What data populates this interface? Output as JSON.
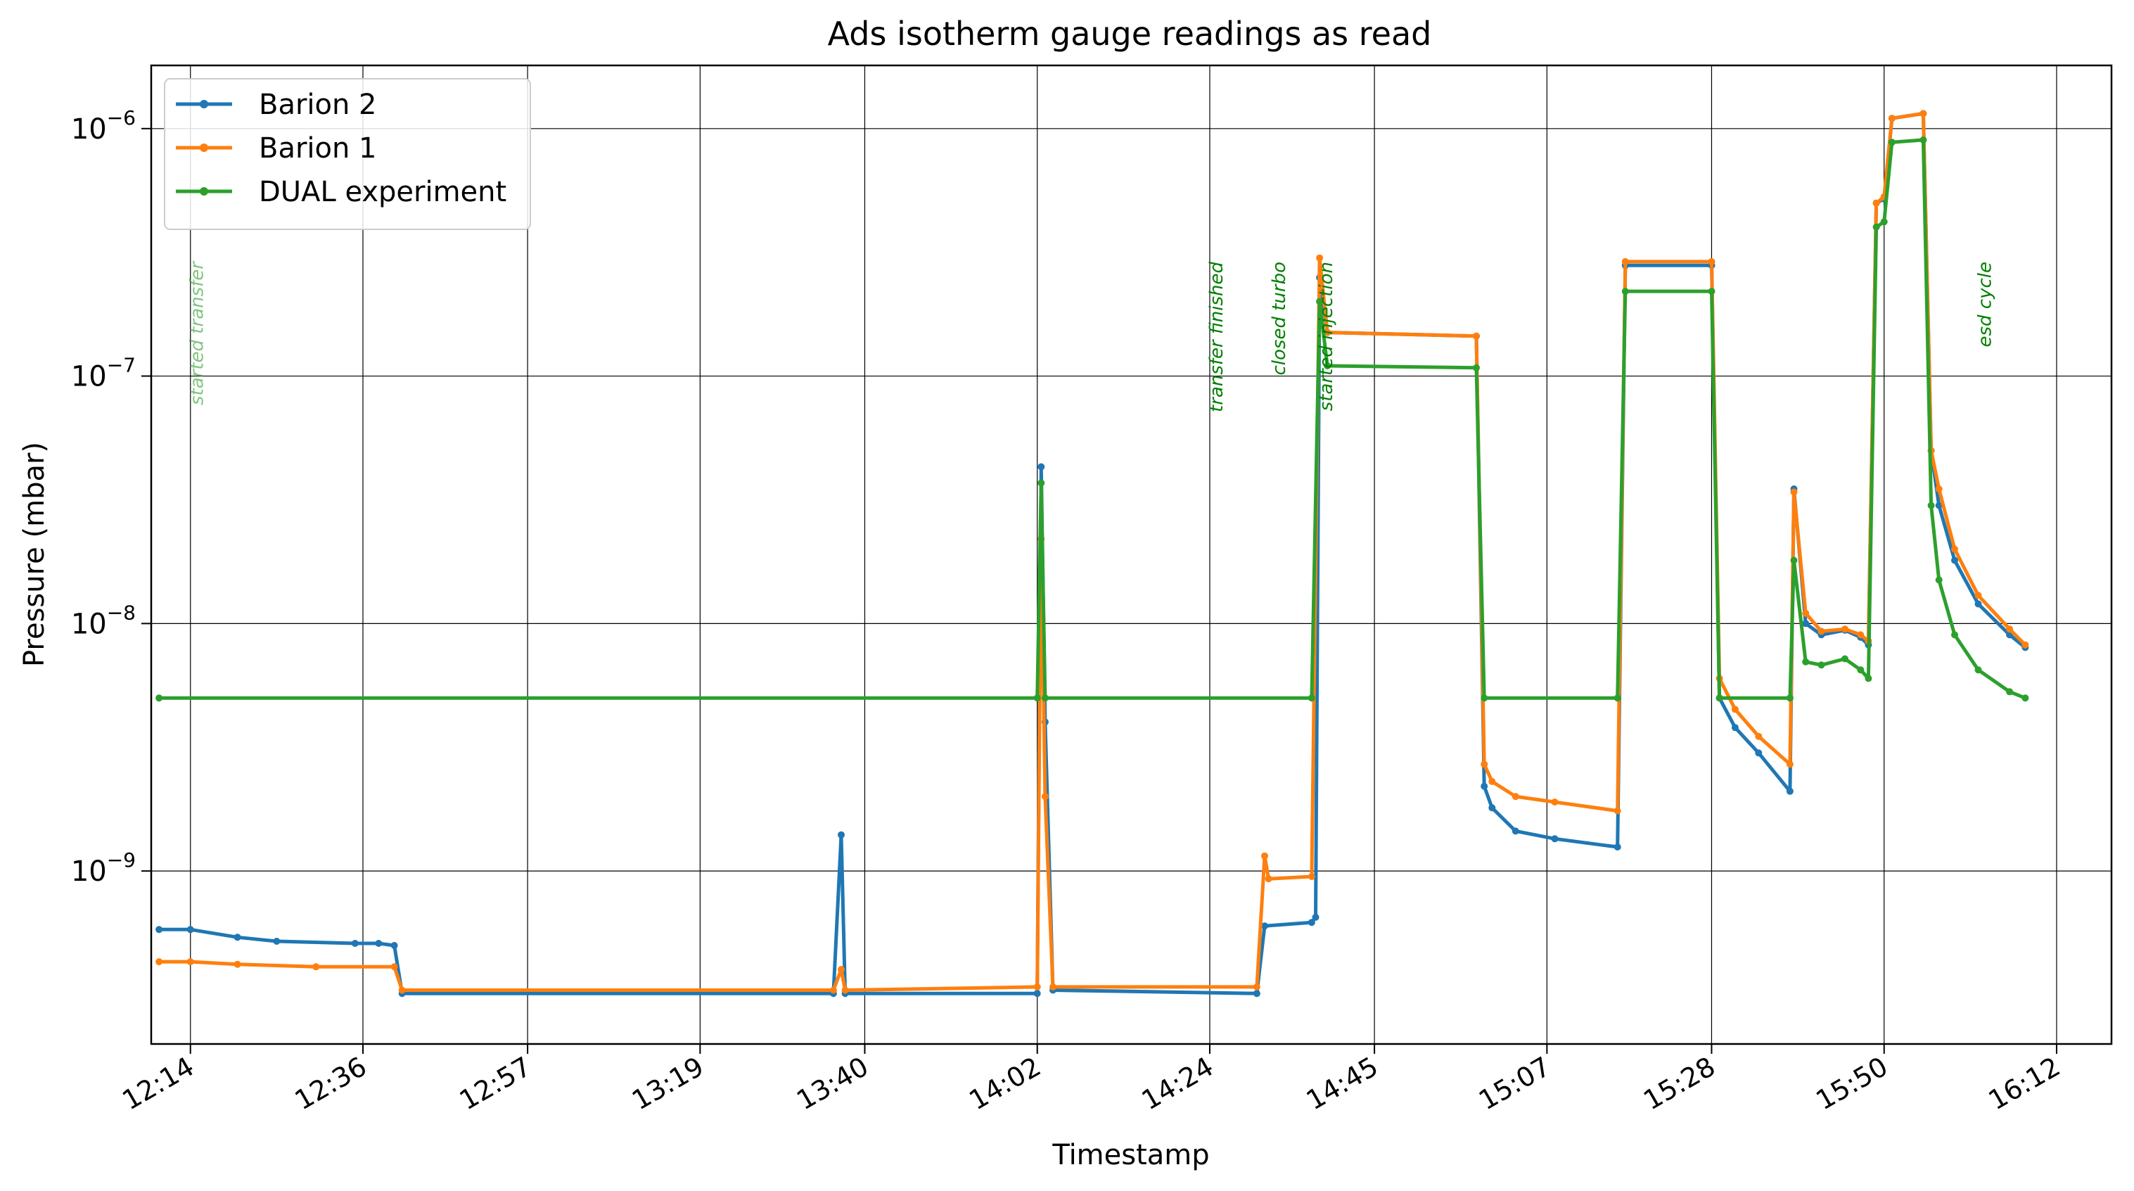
{
  "chart_data": {
    "type": "line",
    "title": "Ads isotherm gauge readings as read",
    "xlabel": "Timestamp",
    "ylabel": "Pressure (mbar)",
    "yscale": "log",
    "ylim": [
      2e-10,
      1.8e-06
    ],
    "xlim": [
      "12:09",
      "16:19"
    ],
    "x_ticks": [
      "12:14",
      "12:36",
      "12:57",
      "13:19",
      "13:40",
      "14:02",
      "14:24",
      "14:45",
      "15:07",
      "15:28",
      "15:50",
      "16:12"
    ],
    "y_ticks": [
      {
        "value": 1e-09,
        "label": "10",
        "exp": "−9"
      },
      {
        "value": 1e-08,
        "label": "10",
        "exp": "−8"
      },
      {
        "value": 1e-07,
        "label": "10",
        "exp": "−7"
      },
      {
        "value": 1e-06,
        "label": "10",
        "exp": "−6"
      }
    ],
    "grid": true,
    "legend_position": "upper-left",
    "series": [
      {
        "name": "Barion 2",
        "color": "#1f77b4",
        "points": [
          [
            "12:10",
            5.8e-10
          ],
          [
            "12:14",
            5.8e-10
          ],
          [
            "12:20",
            5.4e-10
          ],
          [
            "12:25",
            5.2e-10
          ],
          [
            "12:35",
            5.1e-10
          ],
          [
            "12:38",
            5.1e-10
          ],
          [
            "12:40",
            5e-10
          ],
          [
            "12:41",
            3.2e-10
          ],
          [
            "13:36",
            3.2e-10
          ],
          [
            "13:37",
            1.4e-09
          ],
          [
            "13:37.5",
            3.2e-10
          ],
          [
            "14:02",
            3.2e-10
          ],
          [
            "14:02.5",
            4.3e-08
          ],
          [
            "14:03",
            4e-09
          ],
          [
            "14:04",
            3.3e-10
          ],
          [
            "14:30",
            3.2e-10
          ],
          [
            "14:31",
            6e-10
          ],
          [
            "14:37",
            6.2e-10
          ],
          [
            "14:37.5",
            6.5e-10
          ],
          [
            "14:38",
            2.5e-07
          ],
          [
            "14:39",
            1.5e-07
          ],
          [
            "14:58",
            1.45e-07
          ],
          [
            "14:59",
            2.2e-09
          ],
          [
            "15:00",
            1.8e-09
          ],
          [
            "15:03",
            1.45e-09
          ],
          [
            "15:08",
            1.35e-09
          ],
          [
            "15:16",
            1.25e-09
          ],
          [
            "15:17",
            2.8e-07
          ],
          [
            "15:28",
            2.8e-07
          ],
          [
            "15:29",
            5e-09
          ],
          [
            "15:31",
            3.8e-09
          ],
          [
            "15:34",
            3e-09
          ],
          [
            "15:38",
            2.1e-09
          ],
          [
            "15:38.5",
            3.5e-08
          ],
          [
            "15:40",
            1e-08
          ],
          [
            "15:42",
            9e-09
          ],
          [
            "15:45",
            9.4e-09
          ],
          [
            "15:47",
            8.8e-09
          ],
          [
            "15:48",
            8.2e-09
          ],
          [
            "15:49",
            5e-07
          ],
          [
            "15:50",
            5.2e-07
          ],
          [
            "15:51",
            1.1e-06
          ],
          [
            "15:55",
            1.15e-06
          ],
          [
            "15:56",
            5e-08
          ],
          [
            "15:57",
            3e-08
          ],
          [
            "15:59",
            1.8e-08
          ],
          [
            "16:02",
            1.2e-08
          ],
          [
            "16:06",
            9e-09
          ],
          [
            "16:08",
            8e-09
          ]
        ]
      },
      {
        "name": "Barion 1",
        "color": "#ff7f0e",
        "points": [
          [
            "12:10",
            4.3e-10
          ],
          [
            "12:14",
            4.3e-10
          ],
          [
            "12:20",
            4.2e-10
          ],
          [
            "12:30",
            4.1e-10
          ],
          [
            "12:40",
            4.1e-10
          ],
          [
            "12:41",
            3.3e-10
          ],
          [
            "13:36",
            3.3e-10
          ],
          [
            "13:37",
            4e-10
          ],
          [
            "13:37.5",
            3.3e-10
          ],
          [
            "14:02",
            3.4e-10
          ],
          [
            "14:02.5",
            2.2e-08
          ],
          [
            "14:03",
            2e-09
          ],
          [
            "14:04",
            3.4e-10
          ],
          [
            "14:30",
            3.4e-10
          ],
          [
            "14:31",
            1.15e-09
          ],
          [
            "14:31.5",
            9.3e-10
          ],
          [
            "14:37",
            9.5e-10
          ],
          [
            "14:38",
            3e-07
          ],
          [
            "14:39",
            1.5e-07
          ],
          [
            "14:58",
            1.45e-07
          ],
          [
            "14:59",
            2.7e-09
          ],
          [
            "15:00",
            2.3e-09
          ],
          [
            "15:03",
            2e-09
          ],
          [
            "15:08",
            1.9e-09
          ],
          [
            "15:16",
            1.75e-09
          ],
          [
            "15:17",
            2.9e-07
          ],
          [
            "15:28",
            2.9e-07
          ],
          [
            "15:29",
            6e-09
          ],
          [
            "15:31",
            4.5e-09
          ],
          [
            "15:34",
            3.5e-09
          ],
          [
            "15:38",
            2.7e-09
          ],
          [
            "15:38.5",
            3.4e-08
          ],
          [
            "15:40",
            1.1e-08
          ],
          [
            "15:42",
            9.3e-09
          ],
          [
            "15:45",
            9.5e-09
          ],
          [
            "15:47",
            9e-09
          ],
          [
            "15:48",
            8.5e-09
          ],
          [
            "15:49",
            5e-07
          ],
          [
            "15:50",
            5.3e-07
          ],
          [
            "15:51",
            1.1e-06
          ],
          [
            "15:55",
            1.15e-06
          ],
          [
            "15:56",
            5e-08
          ],
          [
            "15:57",
            3.5e-08
          ],
          [
            "15:59",
            2e-08
          ],
          [
            "16:02",
            1.3e-08
          ],
          [
            "16:06",
            9.5e-09
          ],
          [
            "16:08",
            8.2e-09
          ]
        ]
      },
      {
        "name": "DUAL experiment",
        "color": "#2ca02c",
        "points": [
          [
            "12:10",
            5e-09
          ],
          [
            "14:02",
            5e-09
          ],
          [
            "14:02.5",
            3.7e-08
          ],
          [
            "14:03",
            5e-09
          ],
          [
            "14:37",
            5e-09
          ],
          [
            "14:38",
            2e-07
          ],
          [
            "14:39",
            1.1e-07
          ],
          [
            "14:58",
            1.08e-07
          ],
          [
            "14:59",
            5e-09
          ],
          [
            "15:16",
            5e-09
          ],
          [
            "15:17",
            2.2e-07
          ],
          [
            "15:28",
            2.2e-07
          ],
          [
            "15:29",
            5e-09
          ],
          [
            "15:38",
            5e-09
          ],
          [
            "15:38.5",
            1.8e-08
          ],
          [
            "15:40",
            7e-09
          ],
          [
            "15:42",
            6.8e-09
          ],
          [
            "15:45",
            7.2e-09
          ],
          [
            "15:47",
            6.5e-09
          ],
          [
            "15:48",
            6e-09
          ],
          [
            "15:49",
            4e-07
          ],
          [
            "15:50",
            4.2e-07
          ],
          [
            "15:51",
            8.8e-07
          ],
          [
            "15:55",
            9e-07
          ],
          [
            "15:56",
            3e-08
          ],
          [
            "15:57",
            1.5e-08
          ],
          [
            "15:59",
            9e-09
          ],
          [
            "16:02",
            6.5e-09
          ],
          [
            "16:06",
            5.3e-09
          ],
          [
            "16:08",
            5e-09
          ]
        ]
      }
    ],
    "annotations": [
      {
        "text": "started transfer",
        "x": "12:14",
        "color": "#2ca02c"
      },
      {
        "text": "transfer finished",
        "x": "14:24",
        "color": "#008000"
      },
      {
        "text": "closed turbo",
        "x": "14:32",
        "color": "#008000"
      },
      {
        "text": "started injection",
        "x": "14:38",
        "color": "#008000"
      },
      {
        "text": "esd cycle",
        "x": "16:02",
        "color": "#008000"
      }
    ]
  }
}
